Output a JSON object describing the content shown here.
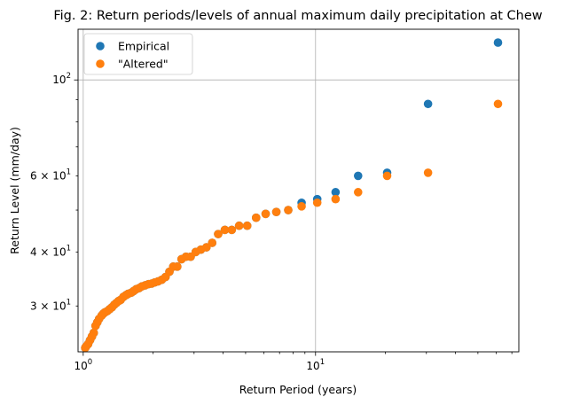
{
  "chart_data": {
    "type": "scatter",
    "title": "Fig. 2: Return periods/levels of annual maximum daily precipitation at Chew",
    "xlabel": "Return Period (years)",
    "ylabel": "Return Level (mm/day)",
    "xscale": "log",
    "yscale": "log",
    "xlim": [
      0.95,
      75
    ],
    "ylim": [
      23.5,
      131
    ],
    "grid": "major only",
    "legend_position": "upper-left",
    "x_ticks": [
      {
        "value": 1,
        "label": "10⁰"
      },
      {
        "value": 10,
        "label": "10¹"
      }
    ],
    "y_ticks": [
      {
        "value": 30,
        "label": "3 × 10¹"
      },
      {
        "value": 40,
        "label": "4 × 10¹"
      },
      {
        "value": 60,
        "label": "6 × 10¹"
      },
      {
        "value": 100,
        "label": "10²"
      }
    ],
    "colors": {
      "Empirical": "#1f77b4",
      "Altered": "#ff7f0e"
    },
    "series": [
      {
        "name": "Empirical",
        "x": [
          61.0,
          30.5,
          20.33,
          15.25,
          12.2,
          10.17,
          8.71,
          7.63,
          6.78,
          6.1,
          5.55,
          5.08,
          4.69,
          4.36,
          4.07,
          3.81,
          3.59,
          3.39,
          3.21,
          3.05,
          2.9,
          2.77,
          2.65,
          2.54,
          2.44,
          2.35,
          2.26,
          2.18,
          2.1,
          2.03,
          1.97,
          1.91,
          1.85,
          1.79,
          1.74,
          1.69,
          1.65,
          1.61,
          1.56,
          1.53,
          1.49,
          1.45,
          1.42,
          1.39,
          1.36,
          1.33,
          1.3,
          1.27,
          1.24,
          1.22,
          1.2,
          1.17,
          1.15,
          1.13,
          1.11,
          1.09,
          1.07,
          1.05,
          1.03,
          1.02
        ],
        "y": [
          122,
          88,
          61,
          60,
          55,
          53,
          52,
          50,
          49.5,
          49,
          48,
          46,
          46,
          45,
          45,
          44,
          42,
          41,
          40.5,
          40,
          39,
          39,
          38.5,
          37,
          37,
          36,
          35,
          34.5,
          34.2,
          34,
          33.8,
          33.7,
          33.5,
          33.3,
          33,
          32.8,
          32.5,
          32.2,
          32,
          31.8,
          31.5,
          31,
          30.8,
          30.5,
          30.2,
          29.8,
          29.5,
          29.2,
          29,
          28.8,
          28.5,
          28,
          27.5,
          27,
          26,
          25.5,
          25,
          24.5,
          24.2,
          24
        ]
      },
      {
        "name": "\"Altered\"",
        "x": [
          61.0,
          30.5,
          20.33,
          15.25,
          12.2,
          10.17,
          8.71,
          7.63,
          6.78,
          6.1,
          5.55,
          5.08,
          4.69,
          4.36,
          4.07,
          3.81,
          3.59,
          3.39,
          3.21,
          3.05,
          2.9,
          2.77,
          2.65,
          2.54,
          2.44,
          2.35,
          2.26,
          2.18,
          2.1,
          2.03,
          1.97,
          1.91,
          1.85,
          1.79,
          1.74,
          1.69,
          1.65,
          1.61,
          1.56,
          1.53,
          1.49,
          1.45,
          1.42,
          1.39,
          1.36,
          1.33,
          1.3,
          1.27,
          1.24,
          1.22,
          1.2,
          1.17,
          1.15,
          1.13,
          1.11,
          1.09,
          1.07,
          1.05,
          1.03,
          1.02
        ],
        "y": [
          88,
          61,
          60,
          55,
          53,
          52,
          51,
          50,
          49.5,
          49,
          48,
          46,
          46,
          45,
          45,
          44,
          42,
          41,
          40.5,
          40,
          39,
          39,
          38.5,
          37,
          37,
          36,
          35,
          34.5,
          34.2,
          34,
          33.8,
          33.7,
          33.5,
          33.3,
          33,
          32.8,
          32.5,
          32.2,
          32,
          31.8,
          31.5,
          31,
          30.8,
          30.5,
          30.2,
          29.8,
          29.5,
          29.2,
          29,
          28.8,
          28.5,
          28,
          27.5,
          27,
          26,
          25.5,
          25,
          24.5,
          24.2,
          24
        ]
      }
    ]
  }
}
